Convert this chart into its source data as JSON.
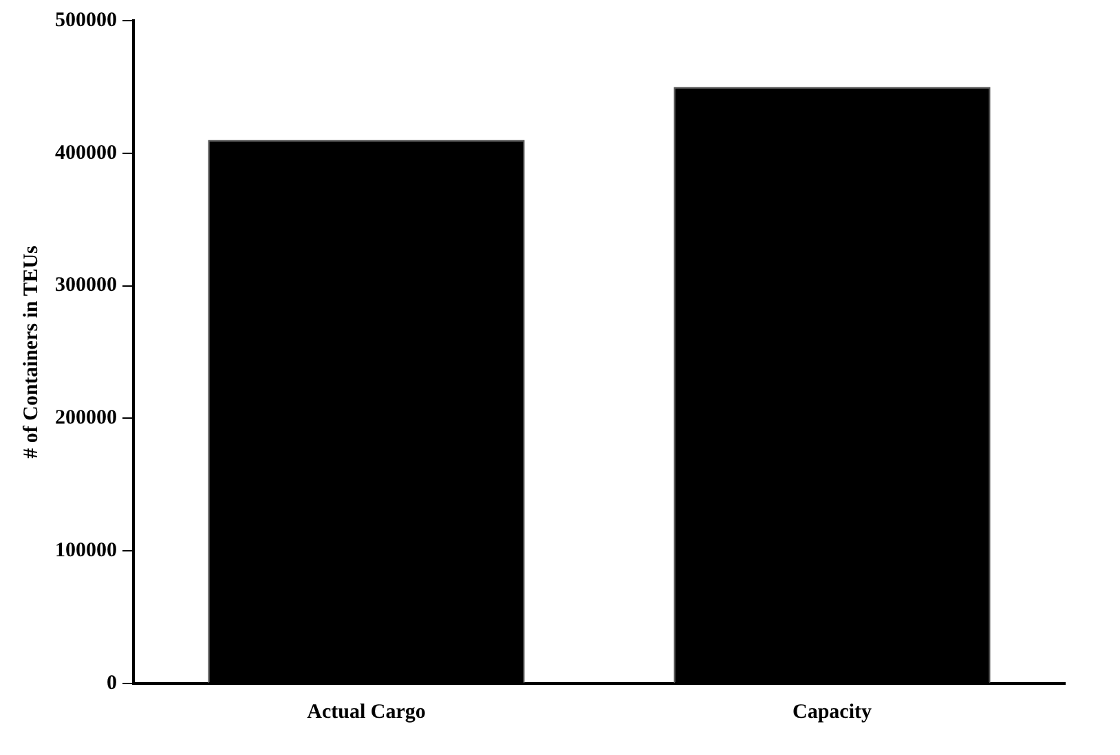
{
  "chart_data": {
    "type": "bar",
    "ylabel": "# of Containers in TEUs",
    "categories": [
      "Actual Cargo",
      "Capacity"
    ],
    "values": [
      410000,
      450000
    ],
    "color": "#000000",
    "ylim": [
      0,
      500000
    ],
    "yticks": [
      0,
      100000,
      200000,
      300000,
      400000,
      500000
    ],
    "grid": false,
    "legend": false
  }
}
